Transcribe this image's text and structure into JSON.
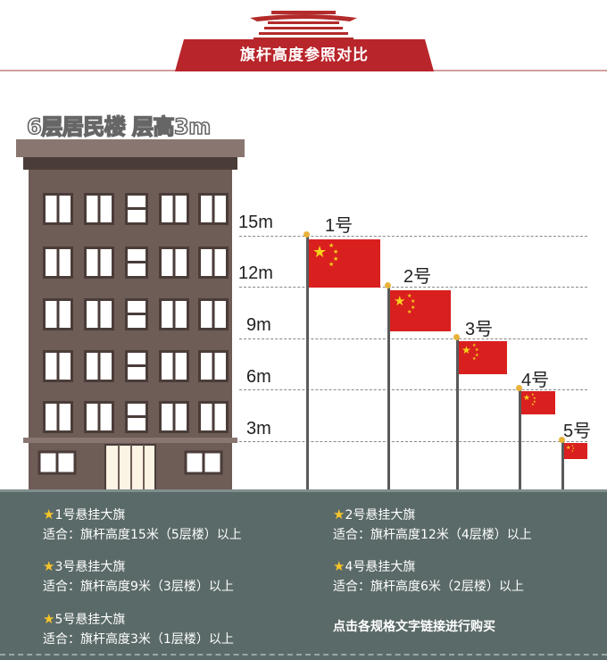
{
  "header": {
    "title": "旗杆高度参照对比"
  },
  "building": {
    "title": "6层居民楼 层高3m"
  },
  "heights": [
    "15m",
    "12m",
    "9m",
    "6m",
    "3m"
  ],
  "flags": [
    "1号",
    "2号",
    "3号",
    "4号",
    "5号"
  ],
  "colors": {
    "flag_red": "#d9201f",
    "star_yellow": "#f7d21c",
    "building": "#6e5c57",
    "panel": "#5a6a68"
  },
  "items": [
    {
      "title": "1号悬挂大旗",
      "suit": "适合：旗杆高度15米（5层楼）以上"
    },
    {
      "title": "2号悬挂大旗",
      "suit": "适合：旗杆高度12米（4层楼）以上"
    },
    {
      "title": "3号悬挂大旗",
      "suit": "适合：旗杆高度9米（3层楼）以上"
    },
    {
      "title": "4号悬挂大旗",
      "suit": "适合：旗杆高度6米（2层楼）以上"
    },
    {
      "title": "5号悬挂大旗",
      "suit": "适合：旗杆高度3米（1层楼）以上"
    }
  ],
  "buy_link": "点击各规格文字链接进行购买"
}
